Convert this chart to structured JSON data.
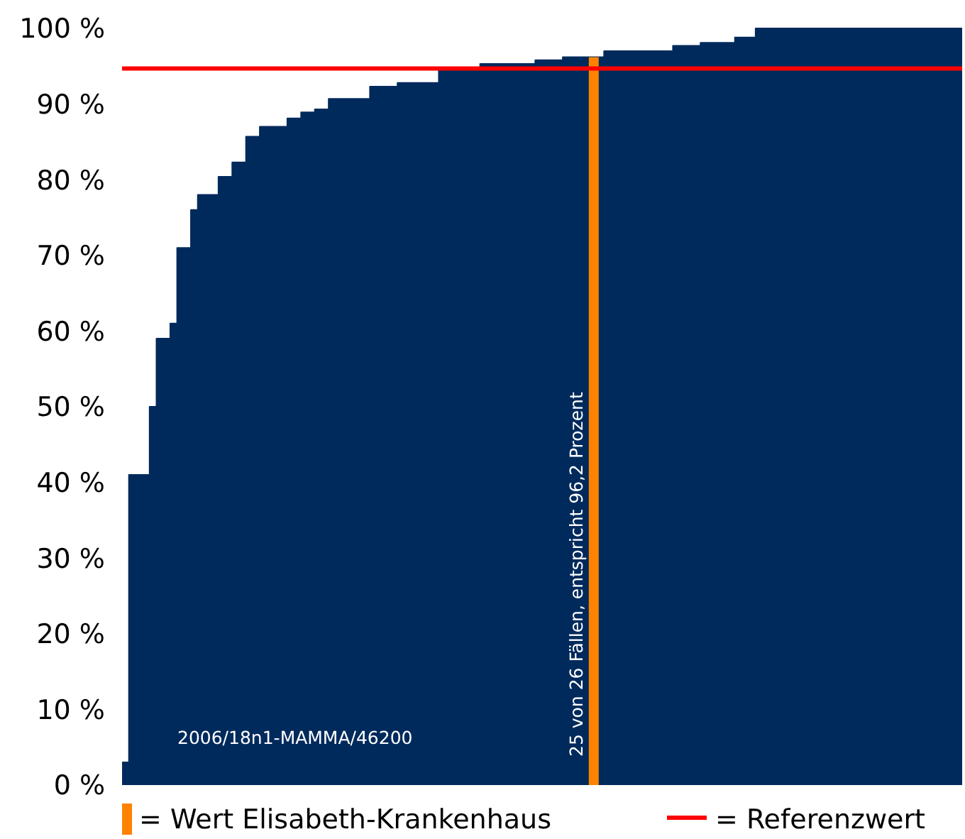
{
  "chart_data": {
    "type": "step",
    "categories": [
      null,
      null,
      null,
      null,
      null,
      null,
      null,
      null,
      null,
      null,
      null,
      null,
      null,
      null,
      null,
      null,
      null,
      null,
      null,
      null,
      null,
      null,
      null,
      null,
      null,
      null,
      null,
      null,
      null,
      null,
      null,
      null,
      null,
      null,
      null,
      null,
      null,
      null,
      null,
      null,
      null,
      null,
      null,
      null,
      null,
      null,
      null,
      null,
      null,
      null,
      null,
      null,
      null,
      null,
      null,
      null,
      null,
      null,
      null,
      null,
      null,
      null,
      null,
      null,
      null,
      null,
      null,
      null,
      null,
      null,
      null,
      null,
      null,
      null,
      null,
      null,
      null,
      null,
      null,
      null,
      null,
      null,
      null,
      null,
      null,
      null,
      null,
      null,
      null,
      null,
      null,
      null,
      null,
      null,
      null,
      null,
      null,
      null,
      null,
      null,
      null,
      null,
      null,
      null,
      null,
      null,
      null,
      null,
      null,
      null,
      null,
      null,
      null,
      null,
      null,
      null,
      null,
      null,
      null,
      null,
      null,
      null
    ],
    "series": [
      {
        "color": "#002a5c",
        "values": [
          3,
          41,
          41,
          41,
          50,
          59,
          59,
          61,
          71,
          71,
          76,
          78,
          78,
          78,
          80.4,
          80.4,
          82.3,
          82.3,
          85.7,
          85.7,
          87,
          87,
          87,
          87,
          88.1,
          88.1,
          88.9,
          88.9,
          89.3,
          89.3,
          90.7,
          90.7,
          90.7,
          90.7,
          90.7,
          90.7,
          92.3,
          92.3,
          92.3,
          92.3,
          92.8,
          92.8,
          92.8,
          92.8,
          92.8,
          92.8,
          94.7,
          94.7,
          94.7,
          94.7,
          94.7,
          94.7,
          95.3,
          95.3,
          95.3,
          95.3,
          95.3,
          95.3,
          95.3,
          95.3,
          95.8,
          95.8,
          95.8,
          95.8,
          96.2,
          96.2,
          96.2,
          96.2,
          96.2,
          96.2,
          97,
          97,
          97,
          97,
          97,
          97,
          97,
          97,
          97,
          97,
          97.7,
          97.7,
          97.7,
          97.7,
          98.1,
          98.1,
          98.1,
          98.1,
          98.1,
          98.8,
          98.8,
          98.8,
          100,
          100,
          100,
          100,
          100,
          100,
          100,
          100,
          100,
          100,
          100,
          100,
          100,
          100,
          100,
          100,
          100,
          100,
          100,
          100,
          100,
          100,
          100,
          100,
          100,
          100,
          100,
          100,
          100,
          100
        ]
      },
      {
        "type": "bar",
        "name": "= Wert Elisabeth-Krankenhaus",
        "color": "#ff8200",
        "values": [
          null,
          null,
          null,
          null,
          null,
          null,
          null,
          null,
          null,
          null,
          null,
          null,
          null,
          null,
          null,
          null,
          null,
          null,
          null,
          null,
          null,
          null,
          null,
          null,
          null,
          null,
          null,
          null,
          null,
          null,
          null,
          null,
          null,
          null,
          null,
          null,
          null,
          null,
          null,
          null,
          null,
          null,
          null,
          null,
          null,
          null,
          null,
          null,
          null,
          null,
          null,
          null,
          null,
          null,
          null,
          null,
          null,
          null,
          null,
          null,
          null,
          null,
          null,
          null,
          null,
          null,
          null,
          null,
          96.2,
          null,
          null,
          null,
          null,
          null,
          null,
          null,
          null,
          null,
          null,
          null,
          null,
          null,
          null,
          null,
          null,
          null,
          null,
          null,
          null,
          null,
          null,
          null,
          null,
          null,
          null,
          null,
          null,
          null,
          null,
          null,
          null,
          null,
          null,
          null,
          null,
          null,
          null,
          null,
          null,
          null,
          null,
          null,
          null,
          null,
          null,
          null,
          null,
          null,
          null,
          null,
          null,
          null
        ]
      }
    ],
    "ylim": [
      0,
      100
    ],
    "yticks": [
      {
        "value": 0,
        "label": "0 %"
      },
      {
        "value": 10,
        "label": "10 %"
      },
      {
        "value": 20,
        "label": "20 %"
      },
      {
        "value": 30,
        "label": "30 %"
      },
      {
        "value": 40,
        "label": "40 %"
      },
      {
        "value": 50,
        "label": "50 %"
      },
      {
        "value": 60,
        "label": "60 %"
      },
      {
        "value": 70,
        "label": "70 %"
      },
      {
        "value": 80,
        "label": "80 %"
      },
      {
        "value": 90,
        "label": "90 %"
      },
      {
        "value": 100,
        "label": "100 %"
      }
    ],
    "ref_lines": [
      {
        "axis": "y",
        "value": 94.7,
        "label": "= Referenzwert",
        "color": "#ff0000"
      }
    ],
    "legend": "bottom",
    "annotations": [
      "2006/18n1-MAMMA/46200",
      "25 von 26 Fällen, entspricht 96,2 Prozent"
    ]
  }
}
